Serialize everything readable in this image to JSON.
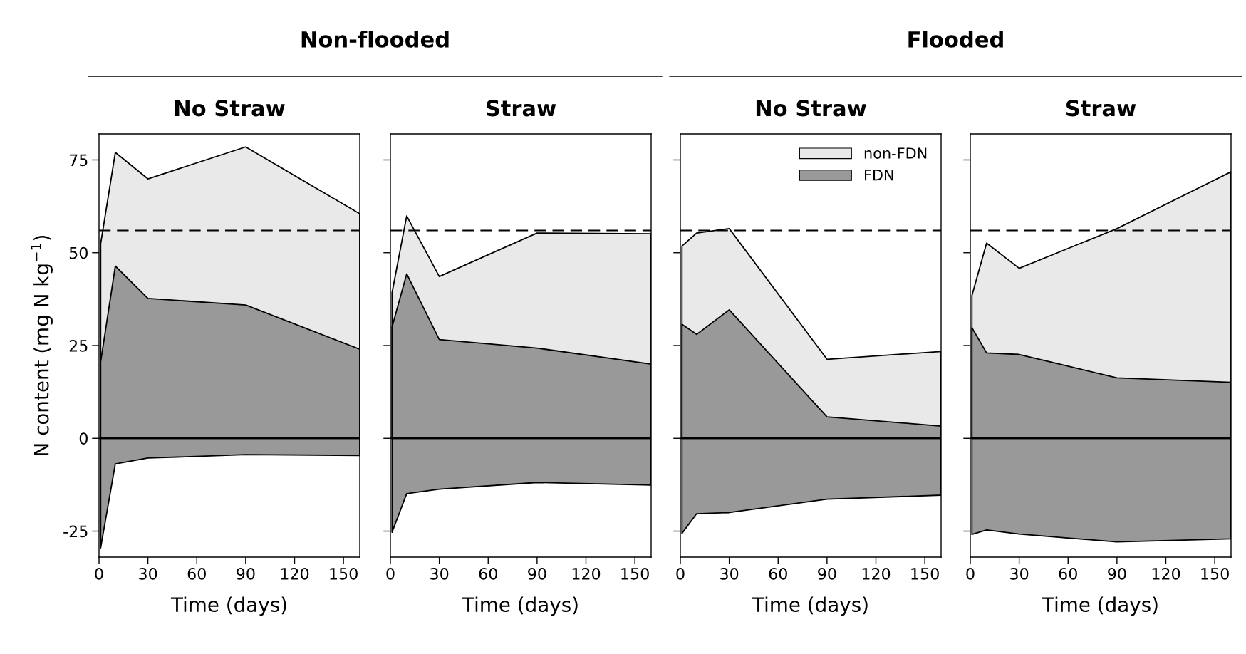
{
  "chart_data": [
    {
      "type": "area",
      "title": "No Straw",
      "xlabel": "Time (days)",
      "ylabel": "N content (mg N kg$^{−1}$)",
      "annotations": [
        "Non-flooded"
      ],
      "x": [
        1,
        10,
        30,
        90,
        160
      ],
      "xlim": [
        0,
        160
      ],
      "ylim": [
        -32,
        82
      ],
      "xticks": [
        0,
        30,
        60,
        90,
        120,
        150
      ],
      "yticks": [
        -25,
        0,
        25,
        50,
        75
      ],
      "grid": false,
      "legend": false,
      "series": [
        {
          "color": "#e9e9e9",
          "values": [
            52.4,
            77.0,
            69.9,
            78.5,
            60.5
          ]
        },
        {
          "color": "#999999",
          "values": [
            20.6,
            46.4,
            37.7,
            35.9,
            24.0
          ]
        },
        {
          "color": "#999999",
          "values": [
            -29.5,
            -6.9,
            -5.3,
            -4.4,
            -4.6
          ]
        }
      ],
      "ref_lines": [
        {
          "axis": "y",
          "value": 56,
          "line_style": "dashed",
          "color": "#000000"
        },
        {
          "axis": "y",
          "value": 0,
          "line_style": "solid",
          "color": "#000000"
        }
      ]
    },
    {
      "type": "area",
      "title": "Straw",
      "xlabel": "Time (days)",
      "x": [
        1,
        10,
        30,
        90,
        160
      ],
      "xlim": [
        0,
        160
      ],
      "ylim": [
        -32,
        82
      ],
      "xticks": [
        0,
        30,
        60,
        90,
        120,
        150
      ],
      "yticks": [
        -25,
        0,
        25,
        50,
        75
      ],
      "tick_labels": "x",
      "grid": false,
      "legend": false,
      "series": [
        {
          "color": "#e9e9e9",
          "values": [
            39.2,
            59.9,
            43.6,
            55.3,
            55.1
          ]
        },
        {
          "color": "#999999",
          "values": [
            30.0,
            44.3,
            26.6,
            24.3,
            20.0
          ]
        },
        {
          "color": "#999999",
          "values": [
            -25.3,
            -14.9,
            -13.7,
            -11.9,
            -12.6
          ]
        }
      ],
      "ref_lines": [
        {
          "axis": "y",
          "value": 56,
          "line_style": "dashed",
          "color": "#000000"
        },
        {
          "axis": "y",
          "value": 0,
          "line_style": "solid",
          "color": "#000000"
        }
      ]
    },
    {
      "type": "area",
      "title": "No Straw",
      "xlabel": "Time (days)",
      "annotations": [
        "Flooded"
      ],
      "x": [
        1,
        10,
        30,
        90,
        160
      ],
      "xlim": [
        0,
        160
      ],
      "ylim": [
        -32,
        82
      ],
      "xticks": [
        0,
        30,
        60,
        90,
        120,
        150
      ],
      "yticks": [
        -25,
        0,
        25,
        50,
        75
      ],
      "tick_labels": "x",
      "grid": false,
      "legend": "top right",
      "series": [
        {
          "name": "non-FDN",
          "color": "#e9e9e9",
          "values": [
            51.8,
            55.3,
            56.5,
            21.3,
            23.4
          ]
        },
        {
          "name": "FDN",
          "color": "#999999",
          "values": [
            30.7,
            28.0,
            34.6,
            5.8,
            3.3
          ]
        },
        {
          "color": "#999999",
          "values": [
            -25.6,
            -20.3,
            -20.0,
            -16.4,
            -15.3
          ]
        }
      ],
      "ref_lines": [
        {
          "axis": "y",
          "value": 56,
          "line_style": "dashed",
          "color": "#000000"
        },
        {
          "axis": "y",
          "value": 0,
          "line_style": "solid",
          "color": "#000000"
        }
      ]
    },
    {
      "type": "area",
      "title": "Straw",
      "xlabel": "Time (days)",
      "x": [
        1,
        10,
        30,
        90,
        160
      ],
      "xlim": [
        0,
        160
      ],
      "ylim": [
        -32,
        82
      ],
      "xticks": [
        0,
        30,
        60,
        90,
        120,
        150
      ],
      "yticks": [
        -25,
        0,
        25,
        50,
        75
      ],
      "tick_labels": "x",
      "grid": false,
      "legend": false,
      "series": [
        {
          "color": "#e9e9e9",
          "values": [
            38.5,
            52.6,
            45.8,
            56.5,
            71.8
          ]
        },
        {
          "color": "#999999",
          "values": [
            29.8,
            23.0,
            22.6,
            16.3,
            15.1
          ]
        },
        {
          "color": "#999999",
          "values": [
            -25.9,
            -24.7,
            -25.8,
            -27.9,
            -27.1
          ]
        }
      ],
      "ref_lines": [
        {
          "axis": "y",
          "value": 56,
          "line_style": "dashed",
          "color": "#000000"
        },
        {
          "axis": "y",
          "value": 0,
          "line_style": "solid",
          "color": "#000000"
        }
      ]
    }
  ]
}
